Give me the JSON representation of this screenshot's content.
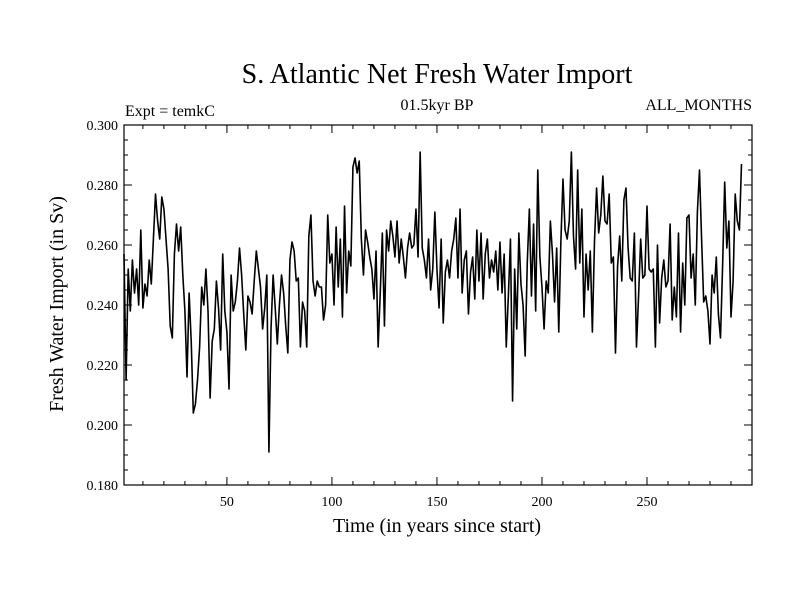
{
  "chart_data": {
    "type": "line",
    "title": "S. Atlantic Net Fresh Water Import",
    "subtitle_left": "Expt = temkC",
    "subtitle_center": "01.5kyr BP",
    "subtitle_right": "ALL_MONTHS",
    "xlabel": "Time (in years since start)",
    "ylabel": "Fresh Water Import (in Sv)",
    "xlim": [
      1,
      300
    ],
    "ylim": [
      0.18,
      0.3
    ],
    "xticks": [
      50,
      100,
      150,
      200,
      250
    ],
    "xtick_labels": [
      "50",
      "100",
      "150",
      "200",
      "250"
    ],
    "yticks": [
      0.18,
      0.2,
      0.22,
      0.24,
      0.26,
      0.28,
      0.3
    ],
    "ytick_labels": [
      "0.180",
      "0.200",
      "0.220",
      "0.240",
      "0.260",
      "0.280",
      "0.300"
    ],
    "line_color": "#000000",
    "series": [
      {
        "name": "Fresh Water Import",
        "x_start": 1,
        "x_step": 1,
        "values": [
          0.257,
          0.215,
          0.252,
          0.238,
          0.255,
          0.244,
          0.252,
          0.24,
          0.265,
          0.239,
          0.247,
          0.243,
          0.255,
          0.247,
          0.262,
          0.277,
          0.268,
          0.262,
          0.276,
          0.272,
          0.262,
          0.252,
          0.233,
          0.229,
          0.257,
          0.267,
          0.258,
          0.266,
          0.25,
          0.238,
          0.216,
          0.244,
          0.228,
          0.204,
          0.207,
          0.215,
          0.226,
          0.246,
          0.24,
          0.252,
          0.238,
          0.209,
          0.228,
          0.232,
          0.248,
          0.239,
          0.225,
          0.257,
          0.238,
          0.231,
          0.212,
          0.25,
          0.238,
          0.241,
          0.248,
          0.259,
          0.25,
          0.237,
          0.225,
          0.243,
          0.241,
          0.237,
          0.248,
          0.258,
          0.252,
          0.246,
          0.232,
          0.239,
          0.25,
          0.191,
          0.232,
          0.25,
          0.239,
          0.227,
          0.24,
          0.25,
          0.244,
          0.233,
          0.224,
          0.255,
          0.261,
          0.258,
          0.248,
          0.249,
          0.226,
          0.241,
          0.238,
          0.226,
          0.263,
          0.27,
          0.248,
          0.243,
          0.248,
          0.246,
          0.246,
          0.235,
          0.24,
          0.27,
          0.254,
          0.257,
          0.24,
          0.266,
          0.246,
          0.262,
          0.236,
          0.273,
          0.244,
          0.258,
          0.253,
          0.286,
          0.289,
          0.284,
          0.288,
          0.262,
          0.25,
          0.265,
          0.261,
          0.256,
          0.252,
          0.242,
          0.258,
          0.226,
          0.244,
          0.264,
          0.233,
          0.265,
          0.258,
          0.268,
          0.263,
          0.256,
          0.268,
          0.254,
          0.262,
          0.256,
          0.249,
          0.259,
          0.264,
          0.259,
          0.26,
          0.272,
          0.256,
          0.291,
          0.259,
          0.255,
          0.249,
          0.262,
          0.245,
          0.252,
          0.271,
          0.252,
          0.239,
          0.262,
          0.234,
          0.251,
          0.255,
          0.249,
          0.258,
          0.262,
          0.269,
          0.249,
          0.272,
          0.244,
          0.255,
          0.258,
          0.237,
          0.251,
          0.256,
          0.242,
          0.265,
          0.248,
          0.264,
          0.242,
          0.257,
          0.262,
          0.249,
          0.255,
          0.251,
          0.258,
          0.245,
          0.261,
          0.244,
          0.257,
          0.226,
          0.243,
          0.262,
          0.208,
          0.252,
          0.232,
          0.264,
          0.247,
          0.24,
          0.223,
          0.254,
          0.272,
          0.243,
          0.267,
          0.238,
          0.285,
          0.256,
          0.246,
          0.232,
          0.248,
          0.244,
          0.268,
          0.257,
          0.241,
          0.259,
          0.231,
          0.261,
          0.282,
          0.265,
          0.262,
          0.268,
          0.291,
          0.263,
          0.252,
          0.285,
          0.254,
          0.272,
          0.236,
          0.257,
          0.245,
          0.258,
          0.231,
          0.261,
          0.279,
          0.264,
          0.27,
          0.283,
          0.268,
          0.267,
          0.277,
          0.254,
          0.256,
          0.224,
          0.253,
          0.263,
          0.248,
          0.275,
          0.279,
          0.259,
          0.249,
          0.248,
          0.264,
          0.226,
          0.243,
          0.262,
          0.249,
          0.25,
          0.273,
          0.252,
          0.251,
          0.252,
          0.226,
          0.26,
          0.234,
          0.249,
          0.255,
          0.246,
          0.248,
          0.267,
          0.235,
          0.246,
          0.236,
          0.264,
          0.231,
          0.254,
          0.24,
          0.269,
          0.27,
          0.249,
          0.257,
          0.24,
          0.271,
          0.285,
          0.262,
          0.241,
          0.243,
          0.238,
          0.227,
          0.25,
          0.244,
          0.256,
          0.237,
          0.229,
          0.253,
          0.281,
          0.259,
          0.268,
          0.236,
          0.248,
          0.277,
          0.268,
          0.265,
          0.287
        ]
      }
    ]
  }
}
